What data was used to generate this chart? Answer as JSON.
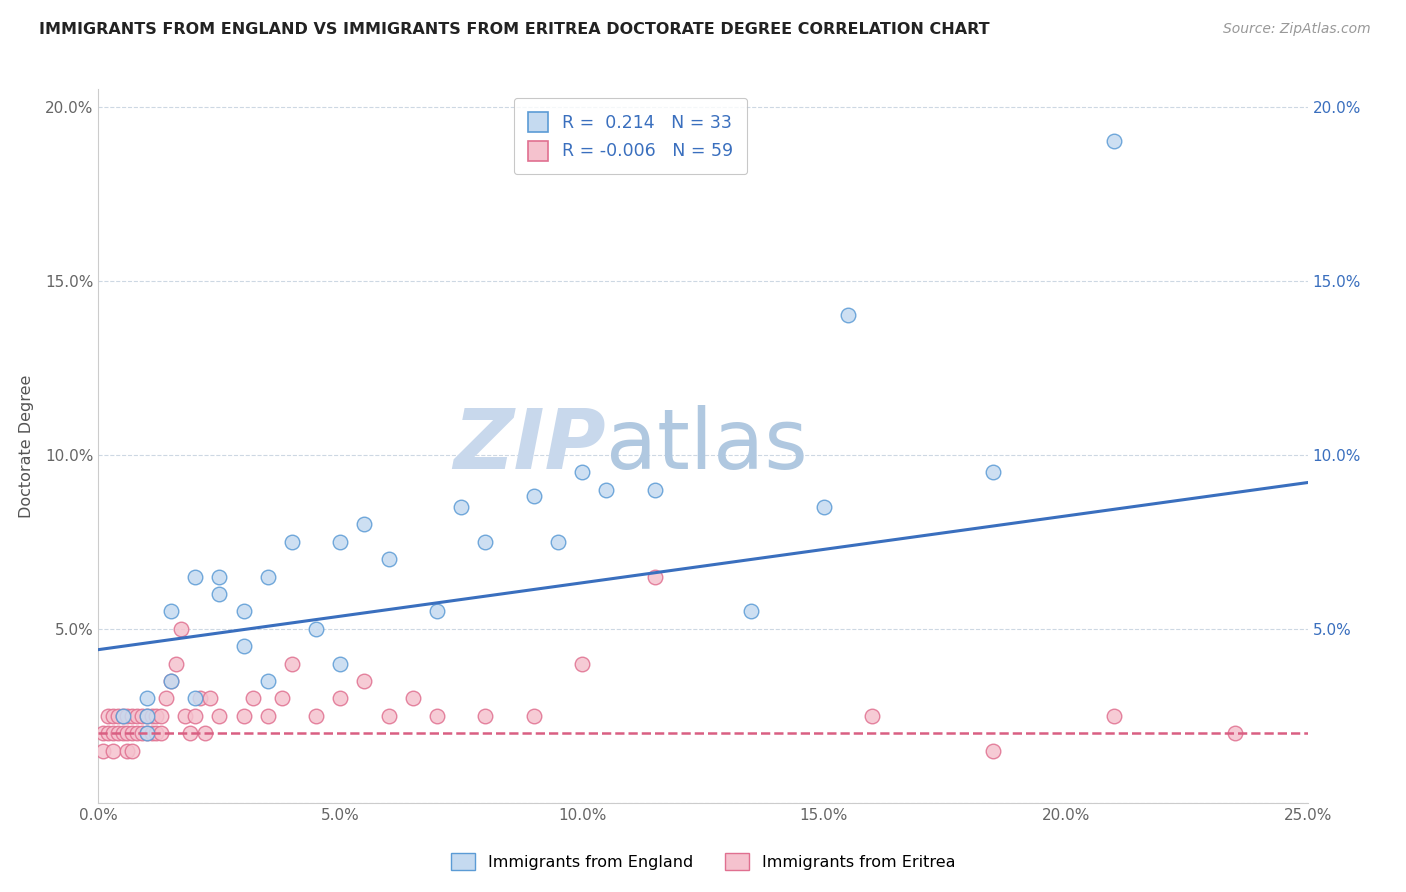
{
  "title": "IMMIGRANTS FROM ENGLAND VS IMMIGRANTS FROM ERITREA DOCTORATE DEGREE CORRELATION CHART",
  "source": "Source: ZipAtlas.com",
  "ylabel": "Doctorate Degree",
  "xlim": [
    0.0,
    0.25
  ],
  "ylim": [
    0.0,
    0.205
  ],
  "england_R": 0.214,
  "england_N": 33,
  "eritrea_R": -0.006,
  "eritrea_N": 59,
  "england_fill_color": "#c5daf0",
  "england_edge_color": "#5b9bd5",
  "eritrea_fill_color": "#f5c2ce",
  "eritrea_edge_color": "#e07090",
  "england_trend_color": "#3a6fbe",
  "eritrea_trend_color": "#d95f82",
  "grid_color": "#c8d4e0",
  "england_trend_start_y": 0.044,
  "england_trend_end_y": 0.092,
  "eritrea_trend_y": 0.02,
  "england_scatter_x": [
    0.005,
    0.01,
    0.01,
    0.01,
    0.015,
    0.015,
    0.02,
    0.02,
    0.025,
    0.025,
    0.03,
    0.03,
    0.035,
    0.035,
    0.04,
    0.045,
    0.05,
    0.05,
    0.055,
    0.06,
    0.07,
    0.075,
    0.08,
    0.09,
    0.095,
    0.1,
    0.105,
    0.115,
    0.135,
    0.15,
    0.155,
    0.185,
    0.21
  ],
  "england_scatter_y": [
    0.025,
    0.02,
    0.025,
    0.03,
    0.035,
    0.055,
    0.065,
    0.03,
    0.06,
    0.065,
    0.045,
    0.055,
    0.035,
    0.065,
    0.075,
    0.05,
    0.04,
    0.075,
    0.08,
    0.07,
    0.055,
    0.085,
    0.075,
    0.088,
    0.075,
    0.095,
    0.09,
    0.09,
    0.055,
    0.085,
    0.14,
    0.095,
    0.19
  ],
  "eritrea_scatter_x": [
    0.001,
    0.001,
    0.002,
    0.002,
    0.003,
    0.003,
    0.003,
    0.004,
    0.004,
    0.005,
    0.005,
    0.006,
    0.006,
    0.006,
    0.007,
    0.007,
    0.007,
    0.008,
    0.008,
    0.009,
    0.009,
    0.01,
    0.01,
    0.011,
    0.011,
    0.012,
    0.012,
    0.013,
    0.013,
    0.014,
    0.015,
    0.016,
    0.017,
    0.018,
    0.019,
    0.02,
    0.021,
    0.022,
    0.023,
    0.025,
    0.03,
    0.032,
    0.035,
    0.038,
    0.04,
    0.045,
    0.05,
    0.055,
    0.06,
    0.065,
    0.07,
    0.08,
    0.09,
    0.1,
    0.115,
    0.16,
    0.185,
    0.21,
    0.235
  ],
  "eritrea_scatter_y": [
    0.015,
    0.02,
    0.02,
    0.025,
    0.015,
    0.02,
    0.025,
    0.02,
    0.025,
    0.02,
    0.025,
    0.015,
    0.02,
    0.025,
    0.015,
    0.02,
    0.025,
    0.02,
    0.025,
    0.02,
    0.025,
    0.02,
    0.025,
    0.02,
    0.025,
    0.02,
    0.025,
    0.02,
    0.025,
    0.03,
    0.035,
    0.04,
    0.05,
    0.025,
    0.02,
    0.025,
    0.03,
    0.02,
    0.03,
    0.025,
    0.025,
    0.03,
    0.025,
    0.03,
    0.04,
    0.025,
    0.03,
    0.035,
    0.025,
    0.03,
    0.025,
    0.025,
    0.025,
    0.04,
    0.065,
    0.025,
    0.015,
    0.025,
    0.02
  ]
}
